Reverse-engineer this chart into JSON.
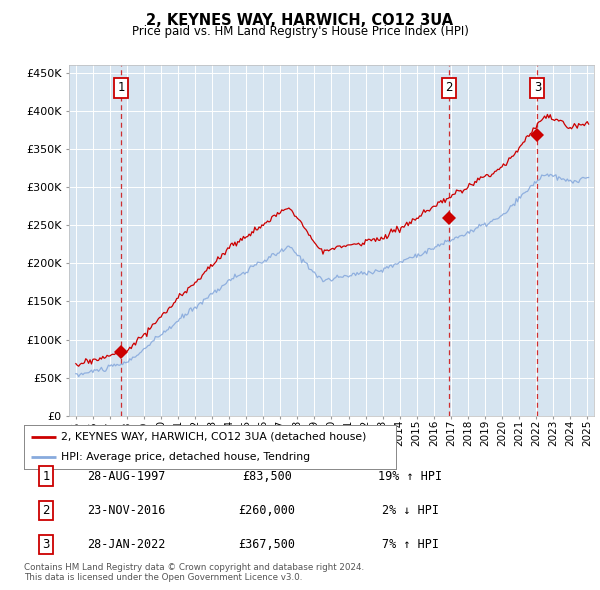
{
  "title": "2, KEYNES WAY, HARWICH, CO12 3UA",
  "subtitle": "Price paid vs. HM Land Registry's House Price Index (HPI)",
  "plot_bg_color": "#d6e4f0",
  "ylim": [
    0,
    460000
  ],
  "yticks": [
    0,
    50000,
    100000,
    150000,
    200000,
    250000,
    300000,
    350000,
    400000,
    450000
  ],
  "xlim_start": 1994.6,
  "xlim_end": 2025.4,
  "sale_points": [
    {
      "num": 1,
      "date": "28-AUG-1997",
      "year": 1997.65,
      "price": 83500,
      "pct": "19%",
      "dir": "↑"
    },
    {
      "num": 2,
      "date": "23-NOV-2016",
      "year": 2016.9,
      "price": 260000,
      "pct": "2%",
      "dir": "↓"
    },
    {
      "num": 3,
      "date": "28-JAN-2022",
      "year": 2022.08,
      "price": 367500,
      "pct": "7%",
      "dir": "↑"
    }
  ],
  "legend_house_label": "2, KEYNES WAY, HARWICH, CO12 3UA (detached house)",
  "legend_hpi_label": "HPI: Average price, detached house, Tendring",
  "footer": "Contains HM Land Registry data © Crown copyright and database right 2024.\nThis data is licensed under the Open Government Licence v3.0.",
  "line_color_house": "#cc0000",
  "line_color_hpi": "#88aadd",
  "marker_color": "#cc0000",
  "vline_color": "#cc0000"
}
